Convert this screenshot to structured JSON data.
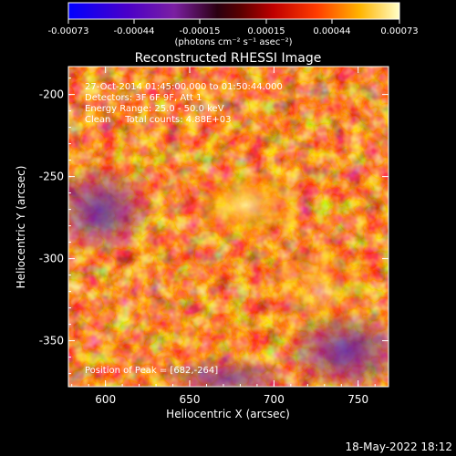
{
  "colorbar": {
    "ticks": [
      "-0.00073",
      "-0.00044",
      "-0.00015",
      "0.00015",
      "0.00044",
      "0.00073"
    ],
    "units": "(photons cm⁻² s⁻¹ asec⁻²)",
    "range": [
      -0.00073,
      0.00073
    ]
  },
  "plot": {
    "title": "Reconstructed RHESSI Image",
    "xlabel": "Heliocentric X (arcsec)",
    "ylabel": "Heliocentric Y (arcsec)",
    "xticks": [
      "600",
      "650",
      "700",
      "750"
    ],
    "yticks": [
      "-200",
      "-250",
      "-300",
      "-350"
    ],
    "xlim": [
      578,
      768
    ],
    "ylim": [
      -183,
      -378
    ],
    "annotations": [
      "27-Oct-2014 01:45:00.000 to 01:50:44.000",
      "Detectors: 3F 6F 9F, Att 1",
      "Energy Range: 25.0 - 50.0 keV",
      "Clean     Total counts: 4.88E+03"
    ],
    "peak_label": "Position of Peak = [682,-264]"
  },
  "footer": {
    "timestamp": "18-May-2022 18:12"
  },
  "colors": {
    "background": "#000000",
    "text": "#ffffff"
  }
}
